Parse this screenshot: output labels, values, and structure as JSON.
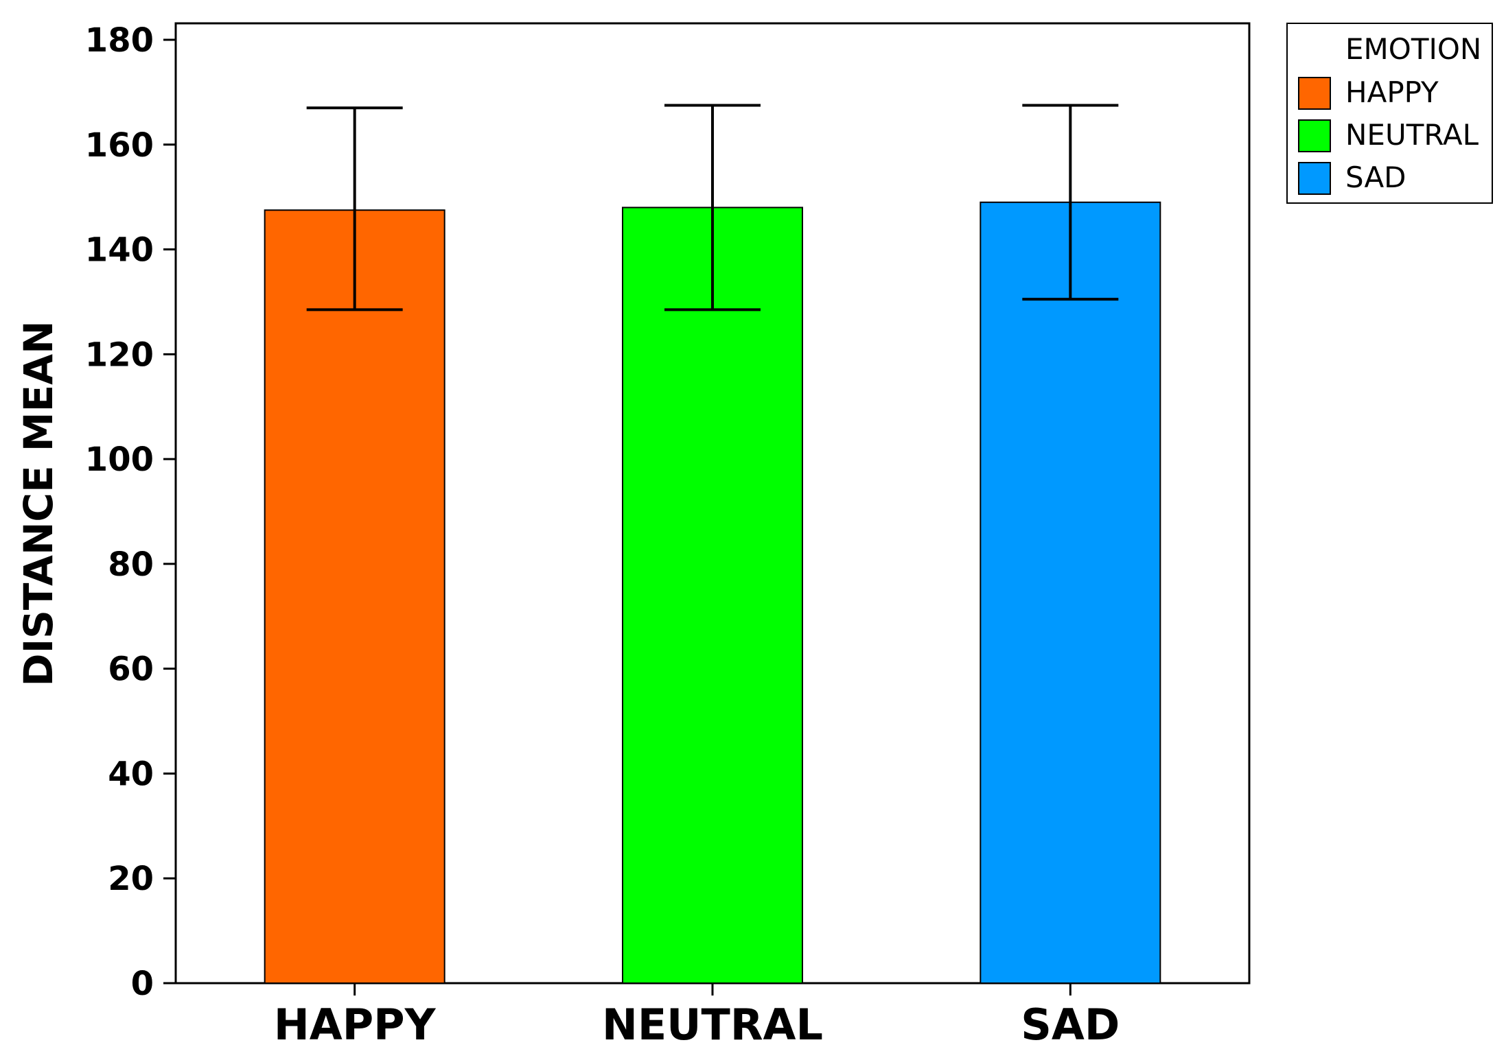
{
  "chart_data": {
    "type": "bar",
    "title": "",
    "xlabel": "",
    "ylabel": "DISTANCE MEAN",
    "ylim": [
      0,
      180
    ],
    "yticks": [
      0,
      20,
      40,
      60,
      80,
      100,
      120,
      140,
      160,
      180
    ],
    "categories": [
      "HAPPY",
      "NEUTRAL",
      "SAD"
    ],
    "values": [
      147.5,
      148,
      149
    ],
    "error_low": [
      128.5,
      128.5,
      130.5
    ],
    "error_high": [
      167,
      167.5,
      167.5
    ],
    "colors": [
      "#FF6600",
      "#00FF00",
      "#0099FF"
    ],
    "grid": false,
    "legend": {
      "title": "EMOTION",
      "position": "top-right, outside plot",
      "items": [
        {
          "label": "HAPPY",
          "color": "#FF6600"
        },
        {
          "label": "NEUTRAL",
          "color": "#00FF00"
        },
        {
          "label": "SAD",
          "color": "#0099FF"
        }
      ]
    }
  }
}
